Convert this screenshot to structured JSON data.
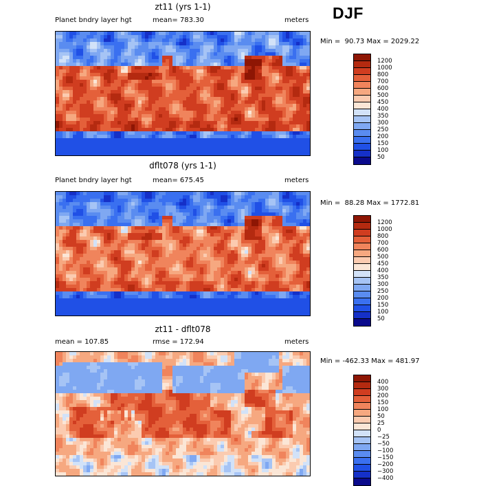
{
  "season": "DJF",
  "panels": [
    {
      "id": "p1",
      "title": "zt11 (yrs 1-1)",
      "left_label": "Planet bndry layer hgt",
      "center_label": "mean= 783.30",
      "right_label": "meters",
      "minmax": "Min =  90.73 Max = 2029.22",
      "colorbar_ticks": [
        "1200",
        "1000",
        "800",
        "700",
        "600",
        "500",
        "450",
        "400",
        "350",
        "300",
        "250",
        "200",
        "150",
        "100",
        "50"
      ]
    },
    {
      "id": "p2",
      "title": "dflt078 (yrs 1-1)",
      "left_label": "Planet bndry layer hgt",
      "center_label": "mean= 675.45",
      "right_label": "meters",
      "minmax": "Min =  88.28 Max = 1772.81",
      "colorbar_ticks": [
        "1200",
        "1000",
        "800",
        "700",
        "600",
        "500",
        "450",
        "400",
        "350",
        "300",
        "250",
        "200",
        "150",
        "100",
        "50"
      ]
    },
    {
      "id": "p3",
      "title": "zt11 - dflt078",
      "left_label": "mean = 107.85",
      "center_label": "rmse = 172.94",
      "right_label": "meters",
      "minmax": "Min = -462.33 Max = 481.97",
      "colorbar_ticks": [
        "400",
        "300",
        "200",
        "150",
        "100",
        "50",
        "25",
        "0",
        "−25",
        "−50",
        "−100",
        "−150",
        "−200",
        "−300",
        "−400"
      ]
    }
  ],
  "chart_data": [
    {
      "type": "heatmap",
      "title": "zt11 (yrs 1-1)",
      "variable": "Planet bndry layer hgt",
      "units": "meters",
      "mean": 783.3,
      "min": 90.73,
      "max": 2029.22,
      "levels": [
        50,
        100,
        150,
        200,
        250,
        300,
        350,
        400,
        450,
        500,
        600,
        700,
        800,
        1000,
        1200
      ],
      "colors": [
        "#0a0a8c",
        "#1530c8",
        "#2050e6",
        "#3a70f0",
        "#5a8cf0",
        "#7fa8f2",
        "#a6c4f5",
        "#d2e2f8",
        "#fbe6d6",
        "#fbcbb0",
        "#f6a880",
        "#f0845c",
        "#e4603a",
        "#d03d20",
        "#b42a10",
        "#8e1604"
      ]
    },
    {
      "type": "heatmap",
      "title": "dflt078 (yrs 1-1)",
      "variable": "Planet bndry layer hgt",
      "units": "meters",
      "mean": 675.45,
      "min": 88.28,
      "max": 1772.81,
      "levels": [
        50,
        100,
        150,
        200,
        250,
        300,
        350,
        400,
        450,
        500,
        600,
        700,
        800,
        1000,
        1200
      ],
      "colors": [
        "#0a0a8c",
        "#1530c8",
        "#2050e6",
        "#3a70f0",
        "#5a8cf0",
        "#7fa8f2",
        "#a6c4f5",
        "#d2e2f8",
        "#fbe6d6",
        "#fbcbb0",
        "#f6a880",
        "#f0845c",
        "#e4603a",
        "#d03d20",
        "#b42a10",
        "#8e1604"
      ]
    },
    {
      "type": "heatmap",
      "title": "zt11 - dflt078",
      "units": "meters",
      "mean": 107.85,
      "rmse": 172.94,
      "min": -462.33,
      "max": 481.97,
      "levels": [
        -400,
        -300,
        -200,
        -150,
        -100,
        -50,
        -25,
        0,
        25,
        50,
        100,
        150,
        200,
        300,
        400
      ],
      "colors": [
        "#0a0a8c",
        "#1530c8",
        "#2050e6",
        "#3a70f0",
        "#5a8cf0",
        "#7fa8f2",
        "#a6c4f5",
        "#d2e2f8",
        "#fbe6d6",
        "#fbcbb0",
        "#f6a880",
        "#f0845c",
        "#e4603a",
        "#d03d20",
        "#b42a10",
        "#8e1604"
      ]
    }
  ]
}
